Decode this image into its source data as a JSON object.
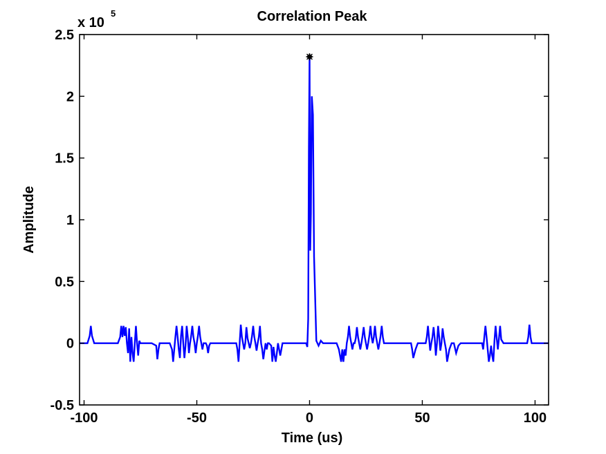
{
  "chart_data": {
    "type": "line",
    "title": "Correlation Peak",
    "xlabel": "Time (us)",
    "ylabel": "Amplitude",
    "y_multiplier": {
      "base": "x 10",
      "exponent": "5"
    },
    "xlim": [
      -102,
      106
    ],
    "ylim": [
      -0.5,
      2.5
    ],
    "y_scale_factor": 100000,
    "grid": false,
    "legend": "none",
    "x_ticks": [
      -100,
      -50,
      0,
      50,
      100
    ],
    "x_tick_labels": [
      "-100",
      "-50",
      "0",
      "50",
      "100"
    ],
    "y_ticks": [
      -0.5,
      0,
      0.5,
      1,
      1.5,
      2,
      2.5
    ],
    "y_tick_labels": [
      "-0.5",
      "0",
      "0.5",
      "1",
      "1.5",
      "2",
      "2.5"
    ],
    "series": [
      {
        "color": "#0000ff",
        "x": [
          -102,
          -98.5,
          -97.5,
          -97,
          -96.5,
          -95.5,
          -94,
          -90,
          -88,
          -85,
          -84,
          -83.5,
          -83,
          -82.5,
          -82,
          -81.5,
          -81,
          -80.5,
          -80,
          -79.5,
          -79,
          -78.5,
          -78,
          -77.5,
          -77,
          -76.5,
          -76,
          -75.5,
          -75,
          -73,
          -70,
          -68,
          -67.5,
          -67,
          -66.5,
          -65,
          -62,
          -61,
          -60.5,
          -60,
          -59.5,
          -59,
          -58.5,
          -58,
          -57.5,
          -57,
          -56.5,
          -56,
          -55.5,
          -55,
          -54.5,
          -54,
          -53.5,
          -53,
          -52.5,
          -52,
          -51.5,
          -51,
          -50.5,
          -50,
          -49.5,
          -49,
          -48.5,
          -48,
          -47.5,
          -47,
          -46.5,
          -46,
          -45.5,
          -45,
          -44.5,
          -44,
          -43.5,
          -43,
          -42,
          -40,
          -37,
          -34,
          -32.5,
          -32,
          -31.5,
          -31,
          -30.5,
          -30,
          -29.5,
          -29,
          -28.5,
          -28,
          -27.5,
          -27,
          -26.5,
          -26,
          -25.5,
          -25,
          -24.5,
          -24,
          -23.5,
          -23,
          -22.5,
          -22,
          -21.5,
          -21,
          -20.5,
          -20,
          -19.5,
          -19,
          -18.5,
          -18,
          -17,
          -16.5,
          -16,
          -15.5,
          -15,
          -14.5,
          -14,
          -13.5,
          -13,
          -12,
          -10,
          -7,
          -3,
          -1.5,
          -1,
          -0.6,
          -0.3,
          0,
          0.3,
          0.6,
          1,
          1.5,
          2,
          3,
          4,
          5,
          6,
          7,
          8,
          9,
          10,
          11,
          12,
          13,
          13.5,
          14,
          14.5,
          15,
          15.5,
          16,
          16.5,
          17,
          17.5,
          18,
          18.5,
          19,
          19.5,
          20,
          20.5,
          21,
          21.5,
          22,
          22.5,
          23,
          23.5,
          24,
          24.5,
          25,
          25.5,
          26,
          26.5,
          27,
          27.5,
          28,
          28.5,
          29,
          29.5,
          30,
          30.5,
          31,
          31.5,
          32,
          32.5,
          33,
          34,
          35,
          38,
          41,
          43,
          44,
          44.5,
          45,
          45.5,
          46,
          47,
          48,
          49,
          49.5,
          50,
          50.5,
          51,
          51.5,
          52,
          52.5,
          53,
          53.5,
          54,
          54.5,
          55,
          55.5,
          56,
          56.5,
          57,
          57.5,
          58,
          58.5,
          59,
          59.5,
          60,
          60.5,
          61,
          62,
          63,
          64,
          65,
          66,
          67,
          68,
          72,
          75,
          76,
          76.5,
          77,
          77.5,
          78,
          78.5,
          79,
          79.5,
          80,
          80.5,
          81,
          81.5,
          82,
          82.5,
          83,
          83.5,
          84,
          84.5,
          85,
          86,
          90,
          95,
          96.5,
          97,
          97.5,
          98,
          98.5,
          99,
          100,
          102,
          106
        ],
        "values": [
          0.0,
          0.0,
          0.06,
          0.14,
          0.06,
          0.0,
          0.0,
          0.0,
          0.0,
          0.0,
          0.05,
          0.14,
          0.05,
          0.14,
          0.06,
          0.13,
          0.0,
          -0.08,
          0.12,
          -0.15,
          0.05,
          -0.08,
          -0.15,
          0.0,
          0.14,
          0.0,
          -0.1,
          0.02,
          0.0,
          0.0,
          0.0,
          -0.02,
          -0.13,
          -0.05,
          0.0,
          0.0,
          0.0,
          -0.05,
          -0.15,
          -0.05,
          0.05,
          0.14,
          0.05,
          -0.05,
          -0.12,
          0.06,
          0.14,
          0.0,
          -0.12,
          -0.02,
          0.14,
          0.05,
          -0.08,
          0.0,
          0.06,
          0.14,
          0.05,
          0.0,
          -0.08,
          0.0,
          0.06,
          0.14,
          0.05,
          0.0,
          -0.05,
          0.0,
          0.0,
          0.0,
          -0.02,
          -0.08,
          -0.02,
          0.0,
          0.0,
          0.0,
          0.0,
          0.0,
          0.0,
          0.0,
          0.0,
          -0.05,
          -0.15,
          0.0,
          0.15,
          0.05,
          0.0,
          -0.05,
          0.0,
          0.13,
          0.04,
          0.0,
          -0.04,
          0.0,
          0.06,
          0.14,
          0.05,
          0.0,
          -0.06,
          0.0,
          0.05,
          0.14,
          0.0,
          -0.05,
          -0.13,
          -0.06,
          0.0,
          -0.05,
          0.0,
          0.0,
          -0.02,
          -0.15,
          -0.03,
          -0.1,
          -0.15,
          -0.08,
          0.0,
          -0.05,
          -0.1,
          0.0,
          0.0,
          0.0,
          0.0,
          0.0,
          -0.03,
          0.2,
          1.58,
          2.32,
          0.75,
          1.05,
          2.0,
          1.85,
          0.7,
          0.02,
          -0.02,
          0.02,
          0.0,
          0.0,
          0.0,
          0.0,
          0.0,
          0.0,
          0.0,
          -0.05,
          -0.1,
          -0.15,
          -0.05,
          -0.15,
          -0.05,
          -0.1,
          0.0,
          0.05,
          0.14,
          0.05,
          0.0,
          -0.05,
          0.0,
          0.0,
          0.04,
          0.13,
          0.05,
          0.0,
          -0.05,
          0.0,
          0.06,
          0.13,
          0.05,
          0.0,
          -0.05,
          0.0,
          0.06,
          0.14,
          0.05,
          0.0,
          0.05,
          0.14,
          0.05,
          0.0,
          -0.05,
          0.0,
          0.06,
          0.14,
          0.05,
          0.0,
          0.0,
          0.0,
          0.0,
          0.0,
          0.0,
          0.0,
          0.0,
          0.0,
          -0.05,
          -0.12,
          -0.05,
          0.0,
          0.0,
          0.0,
          0.0,
          0.0,
          0.0,
          0.0,
          0.05,
          0.14,
          0.04,
          -0.06,
          0.0,
          0.05,
          0.13,
          0.04,
          -0.1,
          0.0,
          0.14,
          0.05,
          -0.06,
          0.0,
          0.12,
          0.05,
          0.0,
          -0.05,
          -0.15,
          -0.05,
          0.0,
          0.0,
          -0.08,
          -0.02,
          0.0,
          0.0,
          0.0,
          0.0,
          0.0,
          0.0,
          -0.05,
          0.05,
          0.14,
          0.05,
          -0.05,
          -0.15,
          -0.1,
          -0.02,
          -0.1,
          -0.15,
          0.02,
          0.14,
          0.04,
          -0.05,
          0.04,
          0.14,
          0.03,
          0.0,
          0.0,
          0.0,
          0.0,
          0.05,
          0.15,
          0.05,
          0.0,
          0.0,
          0.0,
          0.0,
          0.0
        ]
      }
    ],
    "peak_marker": {
      "x": 0,
      "y": 2.32,
      "color": "#000000"
    }
  }
}
